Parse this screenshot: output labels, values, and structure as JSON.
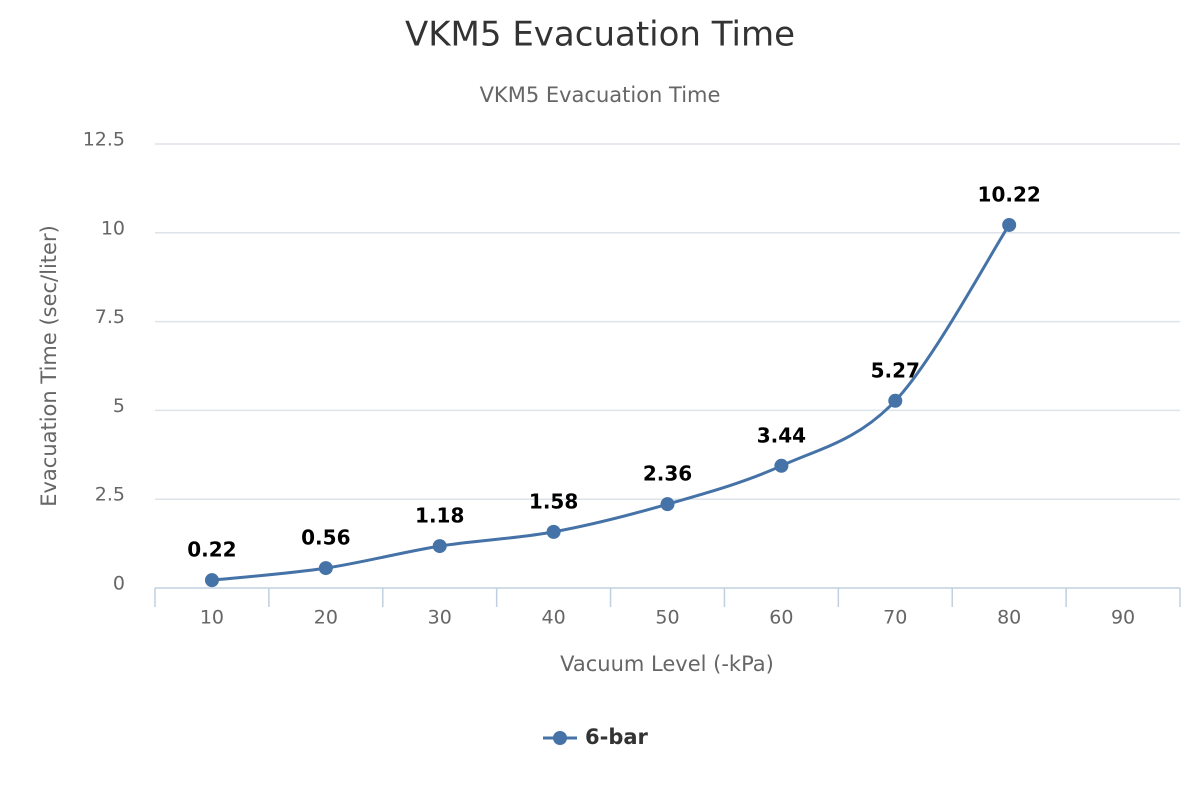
{
  "chart_data": {
    "type": "line",
    "title": "VKM5 Evacuation Time",
    "subtitle": "VKM5 Evacuation Time",
    "x_label": "Vacuum Level (-kPa)",
    "y_label": "Evacuation Time (sec/liter)",
    "categories": [
      "10",
      "20",
      "30",
      "40",
      "50",
      "60",
      "70",
      "80",
      "90"
    ],
    "series": [
      {
        "name": "6-bar",
        "color": "#4572a7",
        "values": [
          0.22,
          0.56,
          1.18,
          1.58,
          2.36,
          3.44,
          5.27,
          10.22,
          null
        ]
      }
    ],
    "ylim": [
      0,
      12.5
    ],
    "yticks": [
      0,
      2.5,
      5,
      7.5,
      10,
      12.5
    ],
    "grid": true,
    "legend": "bottom"
  }
}
